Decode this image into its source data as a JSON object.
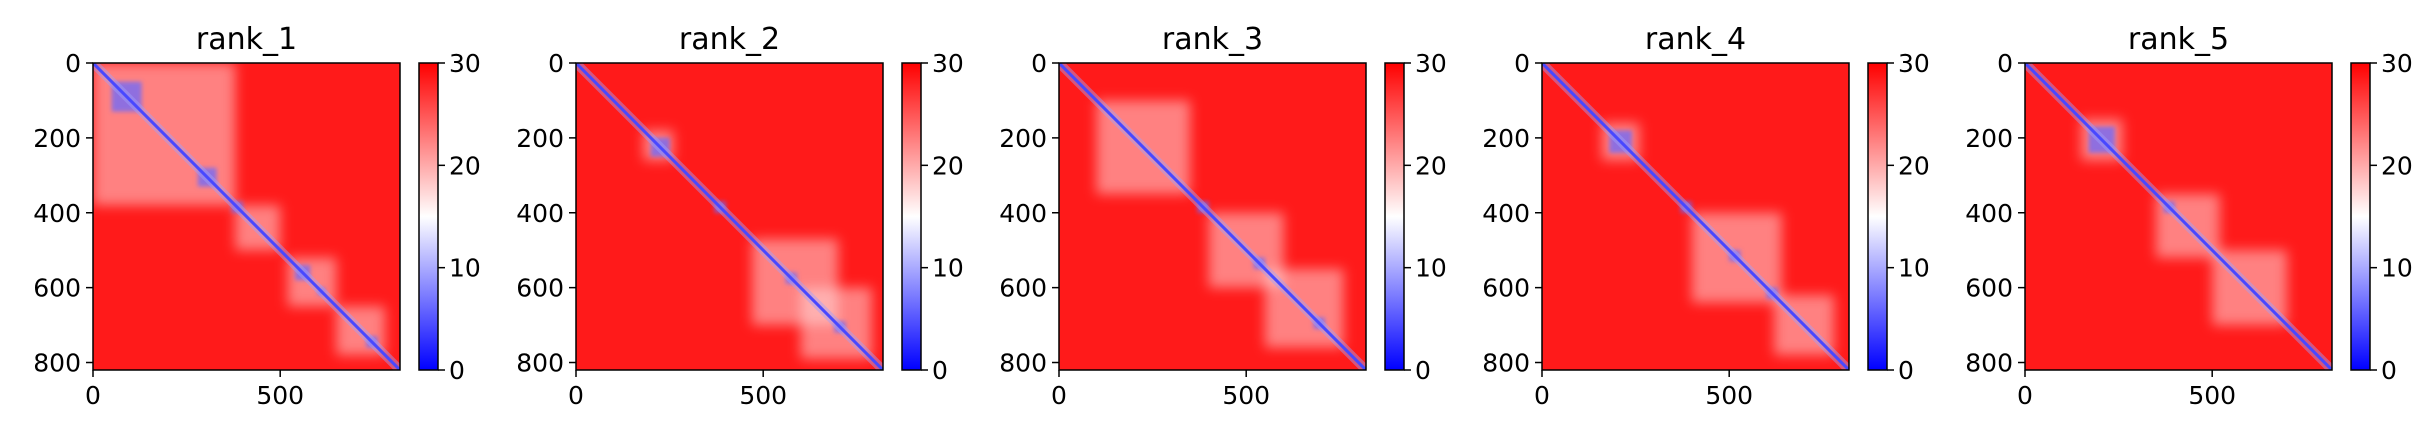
{
  "chart_data": [
    {
      "type": "heatmap",
      "title": "rank_1",
      "xlim": [
        0,
        820
      ],
      "ylim": [
        820,
        0
      ],
      "x_ticks": [
        0,
        500
      ],
      "y_ticks": [
        0,
        200,
        400,
        600,
        800
      ],
      "colorbar": {
        "range": [
          0,
          30
        ],
        "ticks": [
          0,
          10,
          20,
          30
        ],
        "colors": [
          "#0000ff",
          "#ffffff",
          "#ff0000"
        ]
      },
      "blue_blocks": [
        [
          50,
          130
        ],
        [
          280,
          330
        ],
        [
          370,
          400
        ],
        [
          540,
          580
        ],
        [
          600,
          620
        ],
        [
          730,
          760
        ]
      ],
      "white_regions": [
        [
          0,
          380
        ],
        [
          380,
          500
        ],
        [
          520,
          650
        ],
        [
          650,
          780
        ]
      ]
    },
    {
      "type": "heatmap",
      "title": "rank_2",
      "xlim": [
        0,
        820
      ],
      "ylim": [
        820,
        0
      ],
      "x_ticks": [
        0,
        500
      ],
      "y_ticks": [
        0,
        200,
        400,
        600,
        800
      ],
      "colorbar": {
        "range": [
          0,
          30
        ],
        "ticks": [
          0,
          10,
          20,
          30
        ],
        "colors": [
          "#0000ff",
          "#ffffff",
          "#ff0000"
        ]
      },
      "blue_blocks": [
        [
          200,
          250
        ],
        [
          370,
          400
        ],
        [
          560,
          590
        ],
        [
          690,
          720
        ]
      ],
      "white_regions": [
        [
          180,
          260
        ],
        [
          470,
          700
        ],
        [
          600,
          790
        ]
      ]
    },
    {
      "type": "heatmap",
      "title": "rank_3",
      "xlim": [
        0,
        820
      ],
      "ylim": [
        820,
        0
      ],
      "x_ticks": [
        0,
        500
      ],
      "y_ticks": [
        0,
        200,
        400,
        600,
        800
      ],
      "colorbar": {
        "range": [
          0,
          30
        ],
        "ticks": [
          0,
          10,
          20,
          30
        ],
        "colors": [
          "#0000ff",
          "#ffffff",
          "#ff0000"
        ]
      },
      "blue_blocks": [
        [
          370,
          400
        ],
        [
          520,
          550
        ],
        [
          680,
          710
        ]
      ],
      "white_regions": [
        [
          100,
          350
        ],
        [
          400,
          600
        ],
        [
          550,
          760
        ]
      ]
    },
    {
      "type": "heatmap",
      "title": "rank_4",
      "xlim": [
        0,
        820
      ],
      "ylim": [
        820,
        0
      ],
      "x_ticks": [
        0,
        500
      ],
      "y_ticks": [
        0,
        200,
        400,
        600,
        800
      ],
      "colorbar": {
        "range": [
          0,
          30
        ],
        "ticks": [
          0,
          10,
          20,
          30
        ],
        "colors": [
          "#0000ff",
          "#ffffff",
          "#ff0000"
        ]
      },
      "blue_blocks": [
        [
          180,
          240
        ],
        [
          370,
          400
        ],
        [
          500,
          530
        ],
        [
          600,
          630
        ]
      ],
      "white_regions": [
        [
          160,
          260
        ],
        [
          400,
          640
        ],
        [
          620,
          780
        ]
      ]
    },
    {
      "type": "heatmap",
      "title": "rank_5",
      "xlim": [
        0,
        820
      ],
      "ylim": [
        820,
        0
      ],
      "x_ticks": [
        0,
        500
      ],
      "y_ticks": [
        0,
        200,
        400,
        600,
        800
      ],
      "colorbar": {
        "range": [
          0,
          30
        ],
        "ticks": [
          0,
          10,
          20,
          30
        ],
        "colors": [
          "#0000ff",
          "#ffffff",
          "#ff0000"
        ]
      },
      "blue_blocks": [
        [
          170,
          240
        ],
        [
          370,
          400
        ]
      ],
      "white_regions": [
        [
          150,
          260
        ],
        [
          350,
          520
        ],
        [
          500,
          700
        ]
      ]
    }
  ]
}
